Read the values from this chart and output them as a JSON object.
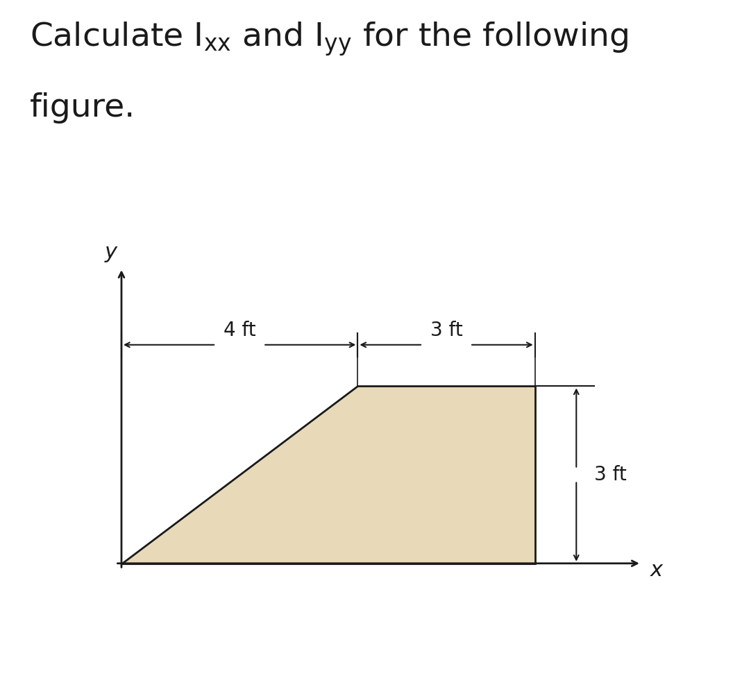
{
  "bg_color": "#ffffff",
  "shape_fill": "#e8d9b8",
  "shape_edge": "#1a1a1a",
  "shape_vertices_x": [
    0,
    7,
    7,
    4,
    0
  ],
  "shape_vertices_y": [
    0,
    0,
    3,
    3,
    0
  ],
  "label_4ft": "4 ft",
  "label_3ft_horiz": "3 ft",
  "label_3ft_vert": "3 ft",
  "label_x": "x",
  "label_y": "y",
  "text_color": "#1a1a1a",
  "arrow_color": "#1a1a1a",
  "dim_line_color": "#1a1a1a",
  "figsize": [
    10.69,
    9.84
  ],
  "dpi": 100,
  "title_text": "Calculate I$_{{xx}}$ and I$_{{yy}}$ for the following\nfigure.",
  "title_fontsize": 34
}
